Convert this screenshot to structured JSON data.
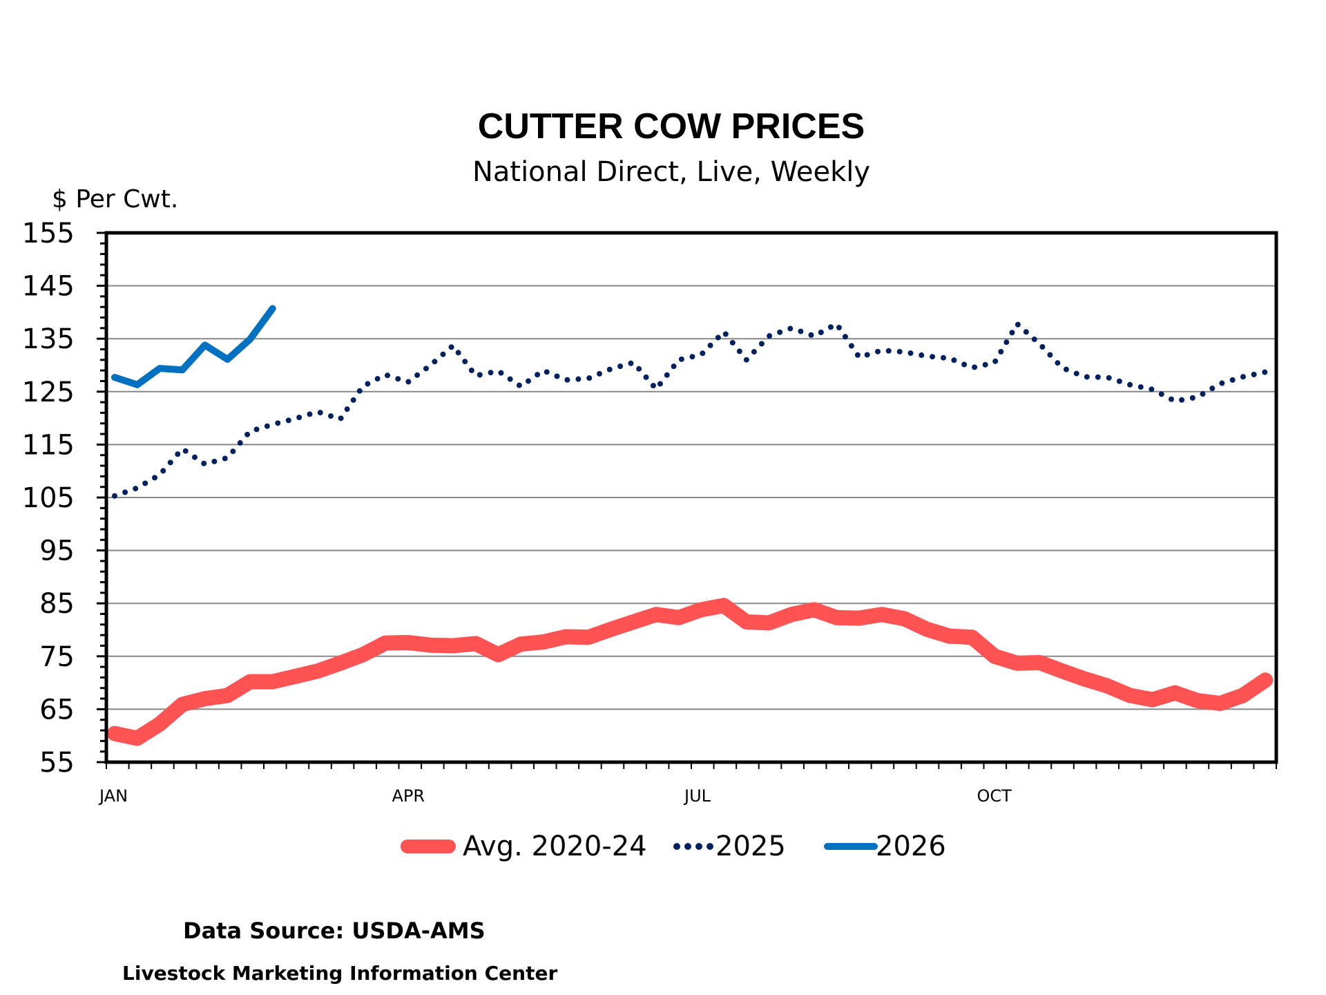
{
  "chart_data": {
    "type": "line",
    "title": "CUTTER COW PRICES",
    "subtitle": "National Direct, Live, Weekly",
    "ylabel": "$ Per Cwt.",
    "xlabel": "",
    "ylim": [
      55,
      155
    ],
    "yticks": [
      55,
      65,
      75,
      85,
      95,
      105,
      115,
      125,
      135,
      145,
      155
    ],
    "y_minor_step": 2,
    "xlim_weeks": [
      1,
      53
    ],
    "x_month_labels": [
      {
        "label": "JAN",
        "week": 1
      },
      {
        "label": "APR",
        "week": 14
      },
      {
        "label": "JUL",
        "week": 27
      },
      {
        "label": "OCT",
        "week": 40
      }
    ],
    "grid": true,
    "legend_position": "bottom",
    "series": [
      {
        "name": "Avg. 2020-24",
        "color": "#FF5252",
        "style": "thick-solid",
        "values": [
          60.4,
          59.5,
          62.2,
          65.9,
          67.0,
          67.6,
          70.2,
          70.2,
          71.2,
          72.2,
          73.7,
          75.3,
          77.5,
          77.6,
          77.1,
          77.0,
          77.4,
          75.3,
          77.3,
          77.7,
          78.7,
          78.6,
          80.1,
          81.5,
          82.9,
          82.3,
          83.8,
          84.6,
          81.5,
          81.3,
          82.9,
          83.8,
          82.3,
          82.2,
          82.9,
          82.1,
          80.1,
          78.8,
          78.6,
          75.0,
          73.7,
          73.8,
          72.2,
          70.7,
          69.4,
          67.6,
          66.8,
          68.1,
          66.6,
          66.1,
          67.6,
          70.5
        ]
      },
      {
        "name": "2025",
        "color": "#002060",
        "style": "dotted",
        "values": [
          105.3,
          106.8,
          109.3,
          114.2,
          111.3,
          112.5,
          117.5,
          118.8,
          119.9,
          121.2,
          119.8,
          126.0,
          128.2,
          126.8,
          130.0,
          133.7,
          128.0,
          128.9,
          126.0,
          129.0,
          127.2,
          127.5,
          129.3,
          130.5,
          125.5,
          131.0,
          132.0,
          136.3,
          131.0,
          135.5,
          137.0,
          135.5,
          137.8,
          131.5,
          132.8,
          132.5,
          131.7,
          131.3,
          129.5,
          130.5,
          137.8,
          134.0,
          129.5,
          127.8,
          127.7,
          126.3,
          125.4,
          123.2,
          124.0,
          126.5,
          127.8,
          128.7
        ]
      },
      {
        "name": "2026",
        "color": "#0070C0",
        "style": "solid",
        "values": [
          127.7,
          126.3,
          129.4,
          129.1,
          133.8,
          131.1,
          134.9,
          140.7
        ]
      }
    ]
  },
  "footer": {
    "source": "Data Source:  USDA-AMS",
    "center": "Livestock Marketing Information Center"
  }
}
